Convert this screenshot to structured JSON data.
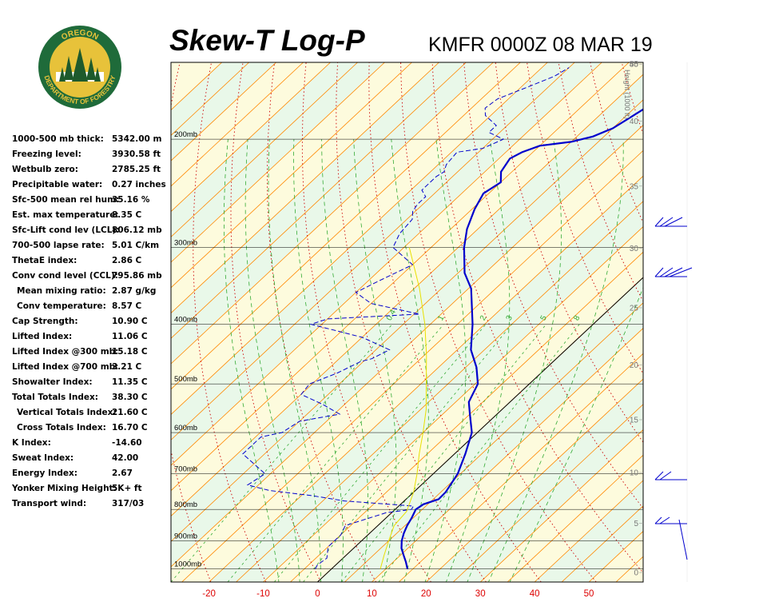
{
  "title": "Skew-T Log-P",
  "station_time": "KMFR 0000Z 08 MAR 19",
  "logo": {
    "top_text": "OREGON",
    "bottom_text": "DEPARTMENT OF FORESTRY",
    "colors": {
      "ring": "#1f6b3a",
      "gold": "#e7c23a",
      "tree": "#1e5a2c"
    }
  },
  "stats": [
    {
      "label": "1000-500 mb thick:",
      "value": "5342.00 m"
    },
    {
      "label": "Freezing level:",
      "value": "3930.58 ft"
    },
    {
      "label": "Wetbulb zero:",
      "value": "2785.25 ft"
    },
    {
      "label": "Precipitable water:",
      "value": "0.27 inches"
    },
    {
      "label": "Sfc-500 mean rel hum:",
      "value": "35.16 %"
    },
    {
      "label": "Est. max temperature:",
      "value": "8.35 C"
    },
    {
      "label": "Sfc-Lift cond lev (LCL):",
      "value": "806.12 mb"
    },
    {
      "label": "700-500 lapse rate:",
      "value": "5.01 C/km"
    },
    {
      "label": "ThetaE index:",
      "value": "2.86 C"
    },
    {
      "label": "Conv cond level (CCL):",
      "value": "795.86 mb"
    },
    {
      "label": "Mean mixing ratio:",
      "value": "2.87 g/kg",
      "indent": true
    },
    {
      "label": "Conv temperature:",
      "value": "8.57 C",
      "indent": true
    },
    {
      "label": "Cap Strength:",
      "value": "10.90 C"
    },
    {
      "label": "Lifted Index:",
      "value": "11.06 C"
    },
    {
      "label": "Lifted Index @300 mb:",
      "value": "15.18 C"
    },
    {
      "label": "Lifted Index @700 mb:",
      "value": "3.21 C"
    },
    {
      "label": "Showalter Index:",
      "value": "11.35 C"
    },
    {
      "label": "Total Totals Index:",
      "value": "38.30 C"
    },
    {
      "label": "Vertical Totals Index:",
      "value": "21.60 C",
      "indent": true
    },
    {
      "label": "Cross Totals Index:",
      "value": "16.70 C",
      "indent": true
    },
    {
      "label": "K Index:",
      "value": "-14.60"
    },
    {
      "label": "Sweat Index:",
      "value": "42.00"
    },
    {
      "label": "Energy Index:",
      "value": "2.67"
    },
    {
      "label": "Yonker Mixing Height:",
      "value": "5K+ ft"
    },
    {
      "label": "Transport wind:",
      "value": "317/03"
    }
  ],
  "chart_data": {
    "type": "line",
    "xlabel": "",
    "ylabel": "",
    "x_ticks": [
      -20,
      -10,
      0,
      10,
      20,
      30,
      40,
      50
    ],
    "x_range": [
      -27,
      60
    ],
    "pressure_levels": [
      {
        "p": 1000,
        "label": "1000mb"
      },
      {
        "p": 900,
        "label": "900mb"
      },
      {
        "p": 800,
        "label": "800mb"
      },
      {
        "p": 700,
        "label": "700mb"
      },
      {
        "p": 600,
        "label": "600mb"
      },
      {
        "p": 500,
        "label": "500mb"
      },
      {
        "p": 400,
        "label": "400mb"
      },
      {
        "p": 300,
        "label": "300mb"
      },
      {
        "p": 200,
        "label": "200mb"
      }
    ],
    "pressure_range": [
      1050,
      150
    ],
    "height_axis": {
      "title": "Height (1000 ft)",
      "ticks": [
        "0",
        "5",
        "10",
        "15",
        "20",
        "25",
        "30",
        "35",
        "40",
        "45",
        "50"
      ]
    },
    "mixing_ratio_labels": [
      "0.4",
      "1",
      "2",
      "3",
      "5",
      "8"
    ],
    "series": [
      {
        "kind": "temperature",
        "color": "#0000cc",
        "points": [
          [
            1000,
            14.0
          ],
          [
            975,
            12.4
          ],
          [
            950,
            10.6
          ],
          [
            925,
            8.8
          ],
          [
            900,
            7.4
          ],
          [
            875,
            6.3
          ],
          [
            850,
            5.4
          ],
          [
            825,
            4.7
          ],
          [
            800,
            3.8
          ],
          [
            785,
            4.2
          ],
          [
            770,
            6.0
          ],
          [
            750,
            5.9
          ],
          [
            700,
            4.5
          ],
          [
            650,
            2.0
          ],
          [
            600,
            -1.0
          ],
          [
            560,
            -5.0
          ],
          [
            535,
            -7.6
          ],
          [
            500,
            -9.5
          ],
          [
            470,
            -13.0
          ],
          [
            440,
            -17.5
          ],
          [
            400,
            -22.2
          ],
          [
            350,
            -29.5
          ],
          [
            330,
            -33.8
          ],
          [
            300,
            -38.9
          ],
          [
            280,
            -42.0
          ],
          [
            260,
            -44.5
          ],
          [
            245,
            -46.0
          ],
          [
            235,
            -45.0
          ],
          [
            226,
            -47.0
          ],
          [
            215,
            -48.0
          ],
          [
            210,
            -47.0
          ],
          [
            205,
            -45.0
          ],
          [
            202,
            -40.0
          ],
          [
            198,
            -37.0
          ],
          [
            192,
            -35.0
          ],
          [
            185,
            -34.0
          ],
          [
            178,
            -33.0
          ],
          [
            172,
            -33.0
          ],
          [
            168,
            -31.5
          ],
          [
            163,
            -31.0
          ],
          [
            159,
            -29.5
          ],
          [
            154,
            -28.5
          ]
        ]
      },
      {
        "kind": "dewpoint",
        "color": "#0000cc",
        "points": [
          [
            1000,
            -3.0
          ],
          [
            985,
            -3.4
          ],
          [
            960,
            -3.0
          ],
          [
            920,
            -5.0
          ],
          [
            880,
            -5.0
          ],
          [
            850,
            -6.0
          ],
          [
            810,
            -1.0
          ],
          [
            800,
            3.0
          ],
          [
            790,
            2.7
          ],
          [
            775,
            -11.0
          ],
          [
            760,
            -18.0
          ],
          [
            745,
            -27.0
          ],
          [
            730,
            -32.0
          ],
          [
            700,
            -31.0
          ],
          [
            650,
            -39.0
          ],
          [
            610,
            -39.0
          ],
          [
            600,
            -36.0
          ],
          [
            575,
            -35.0
          ],
          [
            560,
            -29.0
          ],
          [
            540,
            -34.0
          ],
          [
            520,
            -40.0
          ],
          [
            500,
            -40.5
          ],
          [
            480,
            -37.5
          ],
          [
            460,
            -35.5
          ],
          [
            455,
            -34.0
          ],
          [
            440,
            -32.5
          ],
          [
            420,
            -40.0
          ],
          [
            400,
            -52.0
          ],
          [
            392,
            -50.0
          ],
          [
            385,
            -34.0
          ],
          [
            370,
            -45.0
          ],
          [
            355,
            -50.0
          ],
          [
            340,
            -48.0
          ],
          [
            320,
            -45.0
          ],
          [
            300,
            -52.0
          ],
          [
            285,
            -53.5
          ],
          [
            270,
            -54.0
          ],
          [
            262,
            -55.5
          ],
          [
            255,
            -56.0
          ],
          [
            248,
            -56.0
          ],
          [
            242,
            -58.0
          ],
          [
            230,
            -58.0
          ],
          [
            226,
            -57.5
          ],
          [
            220,
            -58.5
          ],
          [
            210,
            -59.0
          ],
          [
            207,
            -55.0
          ],
          [
            200,
            -53.0
          ],
          [
            195,
            -57.0
          ],
          [
            190,
            -57.0
          ],
          [
            183,
            -61.0
          ],
          [
            178,
            -62.5
          ],
          [
            172,
            -62.0
          ],
          [
            165,
            -59.0
          ],
          [
            158,
            -56.0
          ],
          [
            153,
            -55.0
          ]
        ]
      },
      {
        "kind": "parcel",
        "color": "#e8e000",
        "points": [
          [
            1000,
            9.0
          ],
          [
            950,
            7.0
          ],
          [
            900,
            5.0
          ],
          [
            850,
            3.0
          ],
          [
            806,
            2.5
          ],
          [
            750,
            0.0
          ],
          [
            700,
            -3.0
          ],
          [
            650,
            -6.5
          ],
          [
            600,
            -10.0
          ],
          [
            550,
            -14.0
          ],
          [
            500,
            -19.0
          ],
          [
            450,
            -24.5
          ],
          [
            400,
            -31.0
          ],
          [
            350,
            -39.0
          ],
          [
            300,
            -49.0
          ]
        ]
      }
    ],
    "wind_barbs": [
      "top",
      "upper",
      "mid-lower",
      "lower"
    ],
    "background_colors": {
      "band_a": "#e9f8e9",
      "band_b": "#fdfbdd",
      "isotherm": "#ff8800",
      "dry_adiabat": "#cc0000",
      "moist_adiabat": "#33aa33",
      "isobar": "#000000",
      "freezing": "#000000"
    }
  }
}
